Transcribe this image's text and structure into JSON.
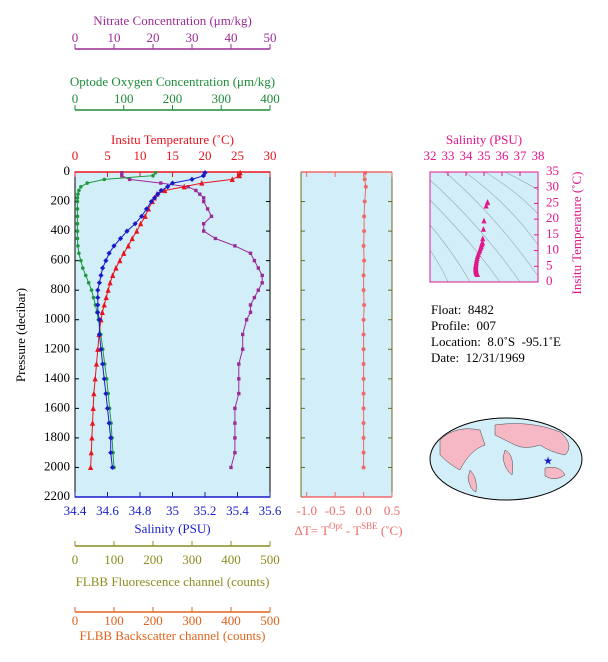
{
  "chart_data": [
    {
      "type": "line",
      "ylabel": "Pressure (decibar)",
      "ylim": [
        0,
        2200
      ],
      "y_inverted": true,
      "yticks": [
        0,
        200,
        400,
        600,
        800,
        1000,
        1200,
        1400,
        1600,
        1800,
        2000,
        2200
      ],
      "pressure": [
        5,
        25,
        50,
        75,
        100,
        125,
        150,
        175,
        200,
        250,
        300,
        350,
        400,
        450,
        500,
        550,
        600,
        650,
        700,
        750,
        800,
        850,
        900,
        950,
        1000,
        1100,
        1200,
        1300,
        1400,
        1500,
        1600,
        1700,
        1800,
        1900,
        2000
      ],
      "xaxes": [
        {
          "label": "Nitrate Concentration (μm/kg)",
          "color": "#9b2c96",
          "xlim": [
            0,
            50
          ],
          "xticks": [
            0,
            10,
            20,
            30,
            40,
            50
          ]
        },
        {
          "label": "Optode Oxygen Concentration (μm/kg)",
          "color": "#1e8c3a",
          "xlim": [
            0,
            400
          ],
          "xticks": [
            0,
            100,
            200,
            300,
            400
          ]
        },
        {
          "label": "Insitu Temperature (˚C)",
          "color": "#e8141e",
          "xlim": [
            0,
            30
          ],
          "xticks": [
            0,
            5,
            10,
            15,
            20,
            25,
            30
          ]
        },
        {
          "label": "Salinity (PSU)",
          "color": "#1a1acc",
          "xlim": [
            34.4,
            35.6
          ],
          "xticks": [
            34.4,
            34.6,
            34.8,
            35.0,
            35.2,
            35.4,
            35.6
          ]
        },
        {
          "label": "FLBB Fluorescence channel (counts)",
          "color": "#8c8c1e",
          "xlim": [
            0,
            500
          ],
          "xticks": [
            0,
            100,
            200,
            300,
            400,
            500
          ]
        },
        {
          "label": "FLBB Backscatter channel (counts)",
          "color": "#e0641e",
          "xlim": [
            0,
            500
          ],
          "xticks": [
            0,
            100,
            200,
            300,
            400,
            500
          ]
        }
      ],
      "series": [
        {
          "xaxis": 0,
          "color": "#9b2c96",
          "marker": "square",
          "values": [
            12,
            12,
            14,
            22,
            29,
            31,
            32,
            33,
            33,
            34,
            35,
            33,
            33,
            36,
            41,
            45,
            46,
            47,
            48,
            48,
            47,
            46,
            45,
            45,
            44,
            43,
            43,
            42,
            42,
            42,
            41,
            41,
            41,
            41,
            40
          ]
        },
        {
          "xaxis": 1,
          "color": "#1e9a3c",
          "marker": "circle",
          "values": [
            165,
            160,
            60,
            25,
            12,
            8,
            6,
            5,
            5,
            5,
            5,
            5,
            5,
            5,
            6,
            8,
            12,
            16,
            22,
            28,
            34,
            38,
            42,
            45,
            48,
            53,
            57,
            61,
            65,
            68,
            71,
            74,
            76,
            78,
            80
          ]
        },
        {
          "xaxis": 2,
          "color": "#e8141e",
          "marker": "triangle",
          "values": [
            25.4,
            25.3,
            24.2,
            19.5,
            16.8,
            13.8,
            12.6,
            12.2,
            11.9,
            11.3,
            10.8,
            10.1,
            9.5,
            8.8,
            8.2,
            7.5,
            6.9,
            6.3,
            5.8,
            5.4,
            5.1,
            4.8,
            4.5,
            4.2,
            4.0,
            3.7,
            3.5,
            3.3,
            3.1,
            2.9,
            2.8,
            2.7,
            2.6,
            2.5,
            2.4
          ]
        },
        {
          "xaxis": 3,
          "color": "#1a1acc",
          "marker": "diamond",
          "values": [
            35.2,
            35.19,
            35.12,
            35.0,
            34.97,
            34.93,
            34.91,
            34.89,
            34.87,
            34.84,
            34.81,
            34.77,
            34.72,
            34.68,
            34.64,
            34.61,
            34.59,
            34.57,
            34.56,
            34.55,
            34.54,
            34.54,
            34.54,
            34.54,
            34.55,
            34.55,
            34.56,
            34.57,
            34.58,
            34.59,
            34.6,
            34.61,
            34.62,
            34.62,
            34.63
          ]
        }
      ]
    },
    {
      "type": "scatter",
      "xlabel": [
        "ΔT= T",
        "Opt",
        " - T",
        "SBE",
        " (˚C)"
      ],
      "color": "#f06a6a",
      "xlim": [
        -1.1,
        0.5
      ],
      "xticks": [
        {
          "value": -1,
          "label": "-1.0"
        },
        {
          "value": -0.5,
          "label": "-0.5"
        },
        {
          "value": 0,
          "label": "0.0"
        },
        0.5
      ],
      "pressure": [
        5,
        50,
        100,
        200,
        300,
        400,
        500,
        600,
        700,
        800,
        900,
        1000,
        1100,
        1200,
        1300,
        1400,
        1500,
        1600,
        1700,
        1800,
        1900,
        2000
      ],
      "values": [
        0.03,
        0.02,
        0.04,
        0.02,
        0.01,
        0.01,
        0.0,
        0.01,
        0.0,
        0.0,
        0.01,
        0.0,
        0.0,
        0.0,
        0.0,
        0.0,
        0.0,
        0.0,
        0.0,
        0.0,
        0.0,
        0.0
      ]
    },
    {
      "type": "ts",
      "xlabel": "Salinity (PSU)",
      "ylabel": "Insitu Temperature (˚C)",
      "color": "#e0188c",
      "xlim": [
        32,
        38
      ],
      "xticks": [
        32,
        33,
        34,
        35,
        36,
        37,
        38
      ],
      "ylim": [
        0,
        35
      ],
      "yticks": [
        0,
        5,
        10,
        15,
        20,
        25,
        30,
        35
      ]
    }
  ],
  "info": [
    "Float:  8482",
    "Profile:  007",
    "Location:  8.0˚S  -95.1˚E",
    "Date:  12/31/1969"
  ]
}
